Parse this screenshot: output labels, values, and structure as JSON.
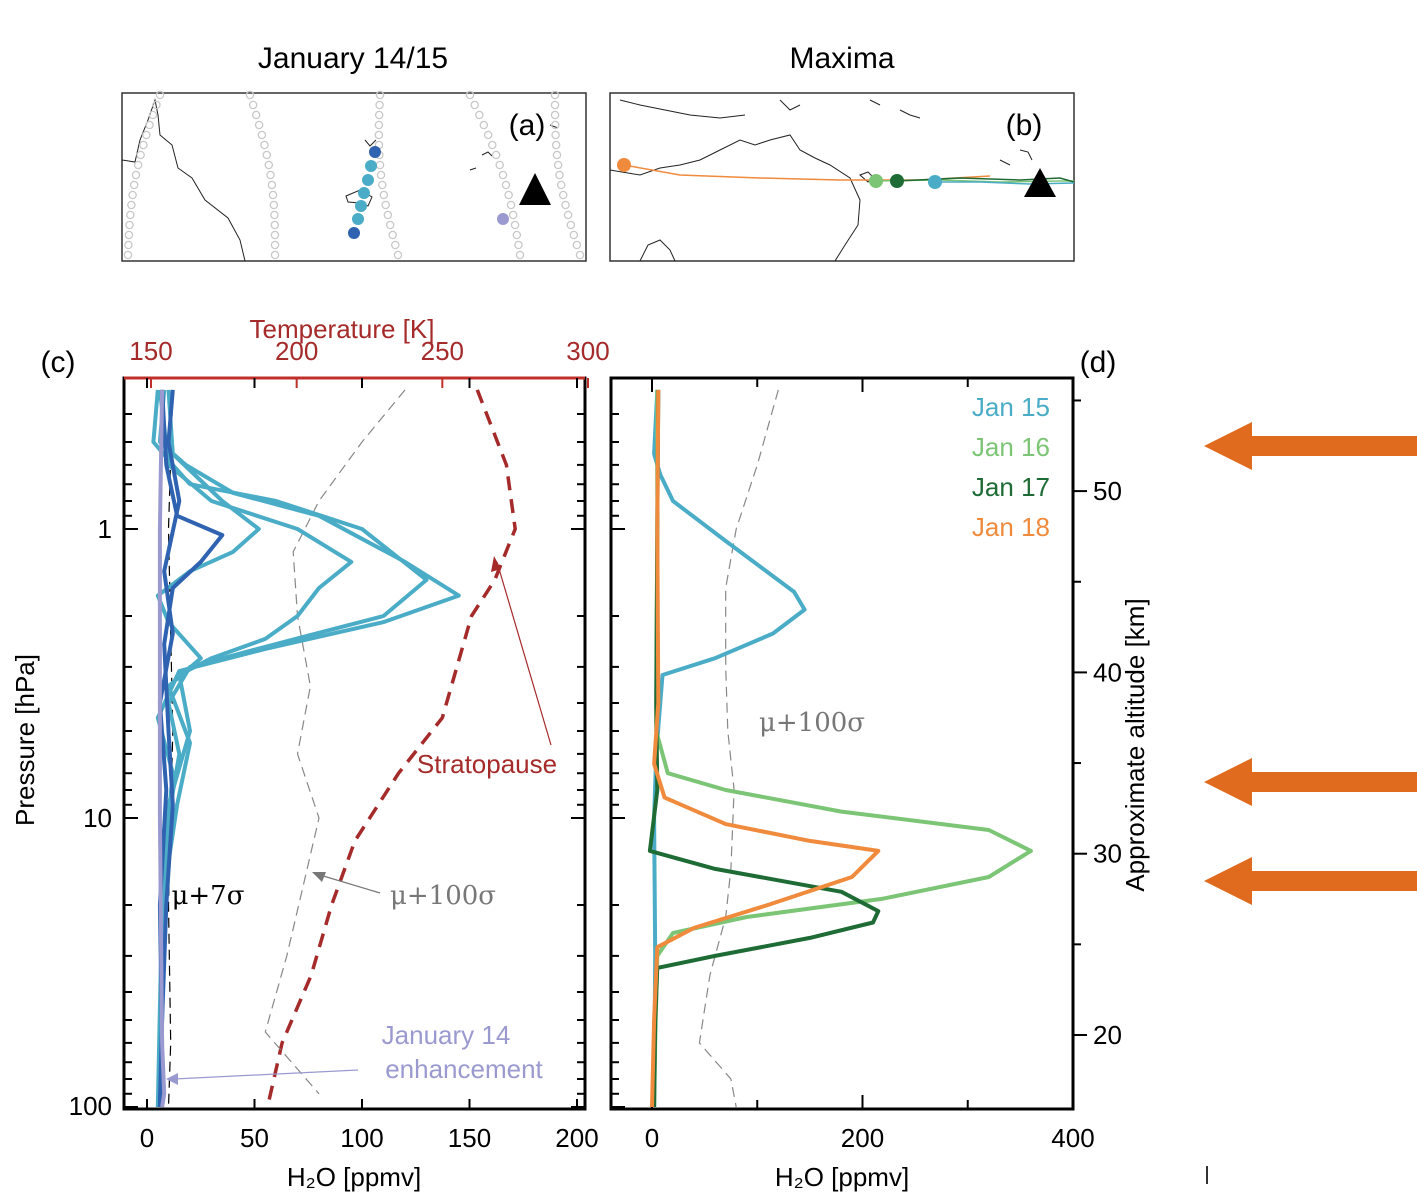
{
  "map_a": {
    "title": "January 14/15",
    "label": "(a)"
  },
  "map_b": {
    "title": "Maxima",
    "label": "(b)"
  },
  "panel_c": {
    "label": "(c)",
    "top_axis_title": "Temperature [K]",
    "top_ticks": [
      "150",
      "200",
      "250",
      "300"
    ],
    "left_axis_title": "Pressure [hPa]",
    "pressure_ticks": [
      "1",
      "10",
      "100"
    ],
    "x_ticks": [
      "0",
      "50",
      "100",
      "150",
      "200"
    ],
    "xlabel": "H₂O [ppmv]",
    "annotations": {
      "stratopause": "Stratopause",
      "mu7": "μ+7σ",
      "mu100": "μ+100σ",
      "jan14_line1": "January 14",
      "jan14_line2": "enhancement"
    }
  },
  "panel_d": {
    "label": "(d)",
    "x_ticks": [
      "0",
      "200",
      "400"
    ],
    "xlabel": "H₂O [ppmv]",
    "right_axis_title": "Approximate altitude [km]",
    "alt_ticks": [
      "20",
      "30",
      "40",
      "50"
    ],
    "mu100": "μ+100σ",
    "legend": [
      "Jan 15",
      "Jan 16",
      "Jan 17",
      "Jan 18"
    ]
  },
  "colors": {
    "jan15": "#4aacc6",
    "jan16": "#7cc576",
    "jan17": "#1e6b35",
    "jan18": "#f08a3c",
    "jan14": "#9a9ad0",
    "dark_blue": "#2f62b0",
    "temperature": "#a52a2a",
    "arrow": "#e06a1e"
  },
  "chart_data": [
    {
      "type": "line",
      "panel": "c",
      "title": "",
      "xlabel": "H₂O [ppmv]",
      "ylabel": "Pressure [hPa]",
      "xlim": [
        -5,
        200
      ],
      "ylim": [
        0.33,
        100
      ],
      "y_scale": "log",
      "secondary_x": {
        "label": "Temperature [K]",
        "lim": [
          150,
          300
        ]
      },
      "series": [
        {
          "color_key": "jan15",
          "points": [
            [
              5,
              0.33
            ],
            [
              3,
              0.5
            ],
            [
              12,
              0.6
            ],
            [
              20,
              0.7
            ],
            [
              60,
              0.8
            ],
            [
              100,
              1.0
            ],
            [
              130,
              1.5
            ],
            [
              110,
              2.0
            ],
            [
              60,
              2.5
            ],
            [
              20,
              3.0
            ],
            [
              10,
              4.0
            ],
            [
              15,
              6.0
            ],
            [
              10,
              10
            ],
            [
              8,
              20
            ],
            [
              7,
              50
            ],
            [
              6,
              100
            ]
          ]
        },
        {
          "color_key": "jan15",
          "points": [
            [
              8,
              0.33
            ],
            [
              6,
              0.5
            ],
            [
              18,
              0.6
            ],
            [
              40,
              0.75
            ],
            [
              80,
              0.9
            ],
            [
              120,
              1.3
            ],
            [
              145,
              1.7
            ],
            [
              110,
              2.1
            ],
            [
              55,
              2.6
            ],
            [
              15,
              3.1
            ],
            [
              5,
              4.5
            ],
            [
              12,
              7
            ],
            [
              9,
              12
            ],
            [
              7,
              25
            ],
            [
              6,
              100
            ]
          ]
        },
        {
          "color_key": "jan15",
          "points": [
            [
              6,
              0.33
            ],
            [
              10,
              0.6
            ],
            [
              30,
              0.8
            ],
            [
              70,
              1.0
            ],
            [
              95,
              1.3
            ],
            [
              80,
              1.6
            ],
            [
              70,
              2.0
            ],
            [
              55,
              2.4
            ],
            [
              30,
              2.8
            ],
            [
              15,
              3.2
            ],
            [
              20,
              5
            ],
            [
              10,
              9
            ],
            [
              8,
              20
            ],
            [
              6,
              100
            ]
          ]
        },
        {
          "color_key": "jan15",
          "points": [
            [
              10,
              0.33
            ],
            [
              12,
              0.55
            ],
            [
              35,
              0.8
            ],
            [
              52,
              1.0
            ],
            [
              40,
              1.2
            ],
            [
              20,
              1.4
            ],
            [
              5,
              1.7
            ],
            [
              10,
              2.1
            ],
            [
              25,
              2.8
            ],
            [
              10,
              3.5
            ],
            [
              20,
              5.5
            ],
            [
              14,
              9
            ],
            [
              7,
              20
            ],
            [
              5,
              100
            ]
          ]
        },
        {
          "color_key": "dark_blue",
          "points": [
            [
              7,
              0.33
            ],
            [
              9,
              0.6
            ],
            [
              14,
              0.9
            ],
            [
              35,
              1.05
            ],
            [
              25,
              1.3
            ],
            [
              12,
              1.6
            ],
            [
              8,
              2.5
            ],
            [
              10,
              5
            ],
            [
              12,
              9
            ],
            [
              9,
              20
            ],
            [
              7,
              50
            ],
            [
              6,
              100
            ]
          ]
        },
        {
          "color_key": "dark_blue",
          "points": [
            [
              12,
              0.33
            ],
            [
              10,
              0.5
            ],
            [
              15,
              0.8
            ],
            [
              8,
              1.4
            ],
            [
              12,
              2.3
            ],
            [
              6,
              4
            ],
            [
              9,
              8
            ],
            [
              6,
              20
            ],
            [
              7,
              60
            ],
            [
              6,
              100
            ]
          ]
        },
        {
          "color_key": "jan14",
          "points": [
            [
              7,
              0.33
            ],
            [
              6,
              1
            ],
            [
              6,
              10
            ],
            [
              7,
              60
            ],
            [
              8,
              90
            ],
            [
              7,
              100
            ]
          ]
        }
      ]
    },
    {
      "type": "line",
      "panel": "d",
      "title": "",
      "xlabel": "H₂O [ppmv]",
      "xlim": [
        -40,
        400
      ],
      "y_scale": "log",
      "ylim": [
        0.33,
        100
      ],
      "secondary_y": {
        "label": "Approximate altitude [km]",
        "ticks": [
          20,
          30,
          40,
          50
        ]
      },
      "series": [
        {
          "name": "Jan 15",
          "color_key": "jan15",
          "points": [
            [
              5,
              0.33
            ],
            [
              2,
              0.55
            ],
            [
              8,
              0.65
            ],
            [
              20,
              0.8
            ],
            [
              70,
              1.1
            ],
            [
              135,
              1.65
            ],
            [
              145,
              1.9
            ],
            [
              115,
              2.3
            ],
            [
              60,
              2.8
            ],
            [
              10,
              3.2
            ],
            [
              4,
              6
            ],
            [
              2,
              10
            ],
            [
              3,
              30
            ],
            [
              2,
              100
            ]
          ]
        },
        {
          "name": "Jan 16",
          "color_key": "jan16",
          "points": [
            [
              5,
              0.33
            ],
            [
              5,
              1
            ],
            [
              4,
              5
            ],
            [
              15,
              7
            ],
            [
              70,
              8
            ],
            [
              180,
              9.5
            ],
            [
              320,
              11
            ],
            [
              360,
              13
            ],
            [
              320,
              16
            ],
            [
              220,
              19
            ],
            [
              90,
              22
            ],
            [
              20,
              25
            ],
            [
              5,
              30
            ],
            [
              3,
              60
            ],
            [
              2,
              100
            ]
          ]
        },
        {
          "name": "Jan 17",
          "color_key": "jan17",
          "points": [
            [
              6,
              0.33
            ],
            [
              5,
              1
            ],
            [
              4,
              4
            ],
            [
              5,
              8
            ],
            [
              -2,
              13
            ],
            [
              60,
              15
            ],
            [
              180,
              18
            ],
            [
              215,
              21
            ],
            [
              210,
              23
            ],
            [
              150,
              26
            ],
            [
              60,
              30
            ],
            [
              5,
              33
            ],
            [
              3,
              50
            ],
            [
              2,
              100
            ]
          ]
        },
        {
          "name": "Jan 18",
          "color_key": "jan18",
          "points": [
            [
              6,
              0.33
            ],
            [
              5,
              1
            ],
            [
              6,
              4
            ],
            [
              2,
              6.5
            ],
            [
              12,
              8.5
            ],
            [
              70,
              10.5
            ],
            [
              150,
              12
            ],
            [
              215,
              13
            ],
            [
              190,
              16
            ],
            [
              110,
              20
            ],
            [
              40,
              24
            ],
            [
              5,
              28
            ],
            [
              2,
              50
            ],
            [
              0,
              100
            ]
          ]
        }
      ]
    }
  ]
}
